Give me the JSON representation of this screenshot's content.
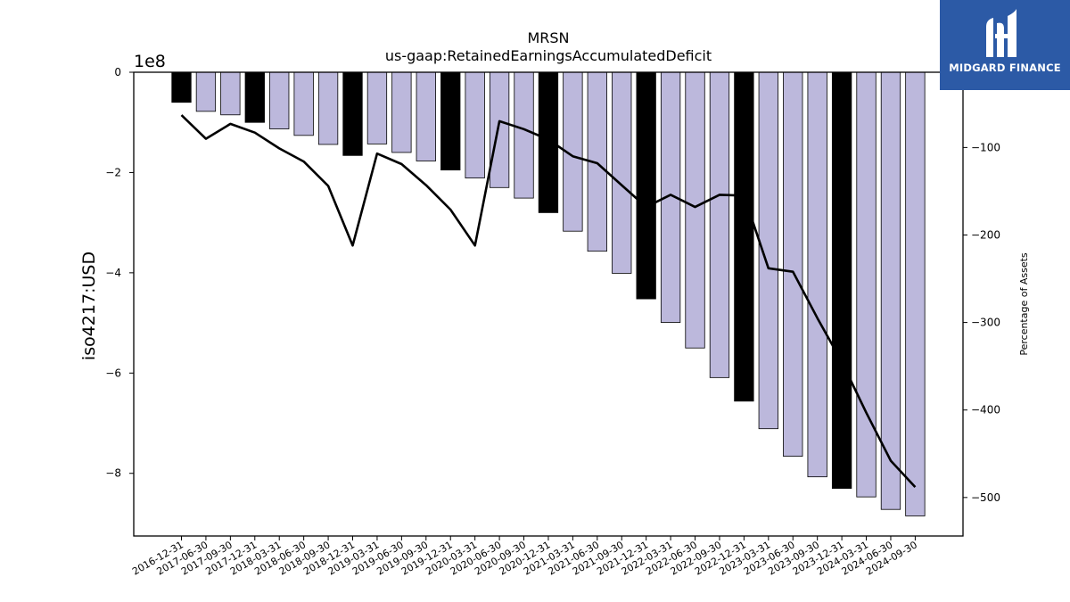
{
  "chart_data": {
    "type": "bar",
    "title": "MRSN",
    "subtitle": "us-gaap:RetainedEarningsAccumulatedDeficit",
    "ylabel": "iso4217:USD",
    "y_offset_label": "1e8",
    "y2label": "Percentage of Assets",
    "categories": [
      "2016-12-31",
      "2017-06-30",
      "2017-09-30",
      "2017-12-31",
      "2018-03-31",
      "2018-06-30",
      "2018-09-30",
      "2018-12-31",
      "2019-03-31",
      "2019-06-30",
      "2019-09-30",
      "2019-12-31",
      "2020-03-31",
      "2020-06-30",
      "2020-09-30",
      "2020-12-31",
      "2021-03-31",
      "2021-06-30",
      "2021-09-30",
      "2021-12-31",
      "2022-03-31",
      "2022-06-30",
      "2022-09-30",
      "2022-12-31",
      "2023-03-31",
      "2023-06-30",
      "2023-09-30",
      "2023-12-31",
      "2024-03-31",
      "2024-06-30",
      "2024-09-30"
    ],
    "series": [
      {
        "values": [
          -0.6,
          -0.78,
          -0.85,
          -1.0,
          -1.13,
          -1.26,
          -1.44,
          -1.66,
          -1.43,
          -1.6,
          -1.77,
          -1.95,
          -2.11,
          -2.3,
          -2.51,
          -2.8,
          -3.17,
          -3.57,
          -4.01,
          -4.52,
          -4.99,
          -5.5,
          -6.09,
          -6.56,
          -7.11,
          -7.66,
          -8.07,
          -8.3,
          -8.47,
          -8.72,
          -8.85
        ],
        "annual": [
          true,
          false,
          false,
          true,
          false,
          false,
          false,
          true,
          false,
          false,
          false,
          true,
          false,
          false,
          false,
          true,
          false,
          false,
          false,
          true,
          false,
          false,
          false,
          true,
          false,
          false,
          false,
          true,
          false,
          false,
          false
        ]
      },
      {
        "axis": "right",
        "values": [
          -63,
          -90,
          -73,
          -83,
          -101,
          -116,
          -144,
          -212,
          -107,
          -119,
          -143,
          -171,
          -212,
          -70,
          -79,
          -91,
          -110,
          -118,
          -143,
          -168,
          -154,
          -168,
          -154,
          -155,
          -238,
          -242,
          -295,
          -345,
          -403,
          -458,
          -488
        ]
      }
    ],
    "ylim": [
      -9.25,
      0
    ],
    "y2lim": [
      -544,
      -14
    ],
    "yticks": [
      0,
      -2,
      -4,
      -6,
      -8
    ],
    "y2ticks": [
      -100,
      -200,
      -300,
      -400,
      -500
    ],
    "colors": {
      "quarterly": "#bcb8dc",
      "annual": "#000000",
      "line": "#000000"
    },
    "grid": false
  },
  "logo": {
    "text": "MIDGARD FINANCE",
    "color": "#2c5aa6"
  }
}
